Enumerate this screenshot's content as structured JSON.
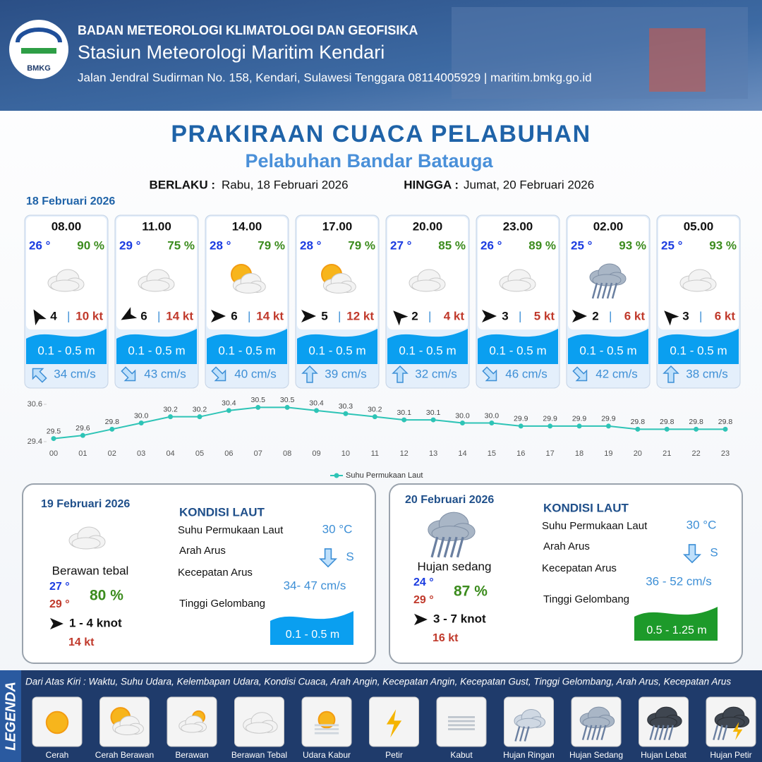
{
  "header": {
    "agency": "BADAN METEOROLOGI KLIMATOLOGI DAN GEOFISIKA",
    "station": "Stasiun Meteorologi Maritim Kendari",
    "address": "Jalan Jendral Sudirman No. 158, Kendari, Sulawesi Tenggara  08114005929 | maritim.bmkg.go.id",
    "logo": "BMKG"
  },
  "title": "PRAKIRAAN CUACA PELABUHAN",
  "subtitle": "Pelabuhan Bandar Batauga",
  "validity": {
    "from_label": "BERLAKU :",
    "from": "Rabu, 18 Februari 2026",
    "until_label": "HINGGA :",
    "until": "Jumat, 20 Februari 2026"
  },
  "day1": {
    "date": "18 Februari 2026",
    "slots": [
      {
        "time": "08.00",
        "temp": "26 °",
        "humidity": "90 %",
        "wind": "4",
        "gust": "10 kt",
        "wave": "0.1 - 0.5 m",
        "current": "34 cm/s"
      },
      {
        "time": "11.00",
        "temp": "29 °",
        "humidity": "75 %",
        "wind": "6",
        "gust": "14 kt",
        "wave": "0.1 - 0.5 m",
        "current": "43 cm/s"
      },
      {
        "time": "14.00",
        "temp": "28 °",
        "humidity": "79 %",
        "wind": "6",
        "gust": "14 kt",
        "wave": "0.1 - 0.5 m",
        "current": "40 cm/s"
      },
      {
        "time": "17.00",
        "temp": "28 °",
        "humidity": "79 %",
        "wind": "5",
        "gust": "12 kt",
        "wave": "0.1 - 0.5 m",
        "current": "39 cm/s"
      },
      {
        "time": "20.00",
        "temp": "27 °",
        "humidity": "85 %",
        "wind": "2",
        "gust": "4 kt",
        "wave": "0.1 - 0.5 m",
        "current": "32 cm/s"
      },
      {
        "time": "23.00",
        "temp": "26 °",
        "humidity": "89 %",
        "wind": "3",
        "gust": "5 kt",
        "wave": "0.1 - 0.5 m",
        "current": "46 cm/s"
      },
      {
        "time": "02.00",
        "temp": "25 °",
        "humidity": "93 %",
        "wind": "2",
        "gust": "6 kt",
        "wave": "0.1 - 0.5 m",
        "current": "42 cm/s"
      },
      {
        "time": "05.00",
        "temp": "25 °",
        "humidity": "93 %",
        "wind": "3",
        "gust": "6 kt",
        "wave": "0.1 - 0.5 m",
        "current": "38 cm/s"
      }
    ]
  },
  "chart_data": {
    "type": "line",
    "categories": [
      "00",
      "01",
      "02",
      "03",
      "04",
      "05",
      "06",
      "07",
      "08",
      "09",
      "10",
      "11",
      "12",
      "13",
      "14",
      "15",
      "16",
      "17",
      "18",
      "19",
      "20",
      "21",
      "22",
      "23"
    ],
    "series": [
      {
        "name": "Suhu Permukaan Laut",
        "color": "#2ec4b6",
        "values": [
          29.5,
          29.6,
          29.8,
          30.0,
          30.2,
          30.2,
          30.4,
          30.5,
          30.5,
          30.4,
          30.3,
          30.2,
          30.1,
          30.1,
          30.0,
          30.0,
          29.9,
          29.9,
          29.9,
          29.9,
          29.8,
          29.8,
          29.8,
          29.8
        ],
        "value_labels": [
          "29.5",
          "29.6",
          "29.8",
          "30.0",
          "30.2",
          "30.2",
          "30.4",
          "30.5",
          "30.5",
          "30.4",
          "30.3",
          "30.2",
          "30.1",
          "30.1",
          "30.0",
          "30.0",
          "29.9",
          "29.9",
          "29.9",
          "29.9",
          "29.8",
          "29.8",
          "29.8",
          "29.8"
        ]
      }
    ],
    "ylim": [
      29.4,
      30.6
    ],
    "yticks": [
      29.4,
      30.6
    ],
    "legend": "bottom"
  },
  "day2": {
    "date": "19 Februari 2026",
    "condition": "Berawan tebal",
    "temp_a": "27 °",
    "temp_b": "29 °",
    "humidity": "80 %",
    "wind": "1 - 4 knot",
    "gust": "14 kt",
    "sea_title": "KONDISI LAUT",
    "sst_label": "Suhu Permukaan Laut",
    "sst": "30 °C",
    "current_dir_label": "Arah Arus",
    "current_dir": "S",
    "current_speed_label": "Kecepatan Arus",
    "current_speed": "34- 47 cm/s",
    "wave_label": "Tinggi Gelombang",
    "wave": "0.1 - 0.5 m"
  },
  "day3": {
    "date": "20 Februari 2026",
    "condition": "Hujan sedang",
    "temp_a": "24 °",
    "temp_b": "29 °",
    "humidity": "87 %",
    "wind": "3 - 7 knot",
    "gust": "16 kt",
    "sea_title": "KONDISI LAUT",
    "sst_label": "Suhu Permukaan Laut",
    "sst": "30 °C",
    "current_dir_label": "Arah Arus",
    "current_dir": "S",
    "current_speed_label": "Kecepatan Arus",
    "current_speed": "36 - 52 cm/s",
    "wave_label": "Tinggi Gelombang",
    "wave": "0.5 - 1.25 m"
  },
  "legend": {
    "title": "LEGENDA",
    "description": "Dari Atas Kiri : Waktu, Suhu Udara, Kelembapan Udara, Kondisi Cuaca, Arah Angin, Kecepatan Angin, Kecepatan Gust, Tinggi Gelombang, Arah Arus, Kecepatan Arus",
    "items": [
      "Cerah",
      "Cerah Berawan",
      "Berawan",
      "Berawan Tebal",
      "Udara Kabur",
      "Petir",
      "Kabut",
      "Hujan Ringan",
      "Hujan Sedang",
      "Hujan Lebat",
      "Hujan Petir"
    ]
  }
}
